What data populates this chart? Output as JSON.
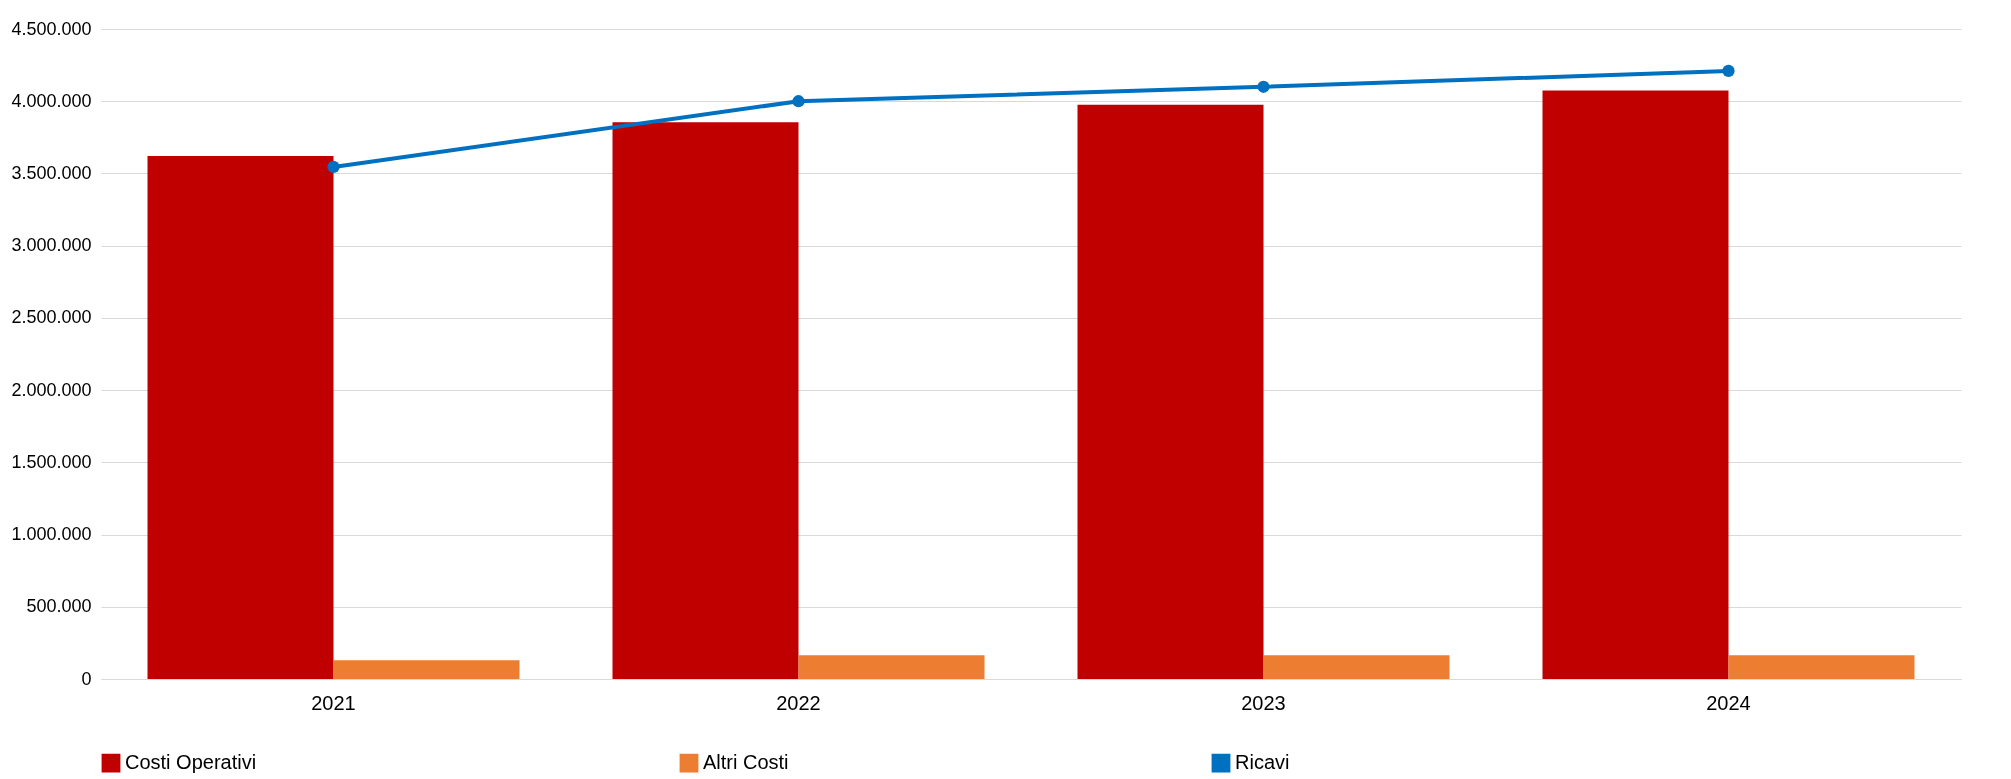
{
  "chart_data": {
    "type": "bar",
    "categories": [
      "2021",
      "2022",
      "2023",
      "2024"
    ],
    "series": [
      {
        "name": "Costi Operativi",
        "color": "#c00000",
        "values": [
          3620000,
          3855000,
          3975000,
          4075000
        ]
      },
      {
        "name": "Altri Costi",
        "color": "#ed7d31",
        "values": [
          130000,
          165000,
          165000,
          165000
        ]
      },
      {
        "name": "Ricavi",
        "color": "#0070c0",
        "type": "line",
        "marker": "circle",
        "values": [
          3545000,
          4000000,
          4100000,
          4210000
        ]
      }
    ],
    "ylim": [
      0,
      4500000
    ],
    "yticks": [
      {
        "value": 0,
        "label": "0"
      },
      {
        "value": 500000,
        "label": "500.000"
      },
      {
        "value": 1000000,
        "label": "1.000.000"
      },
      {
        "value": 1500000,
        "label": "1.500.000"
      },
      {
        "value": 2000000,
        "label": "2.000.000"
      },
      {
        "value": 2500000,
        "label": "2.500.000"
      },
      {
        "value": 3000000,
        "label": "3.000.000"
      },
      {
        "value": 3500000,
        "label": "3.500.000"
      },
      {
        "value": 4000000,
        "label": "4.000.000"
      },
      {
        "value": 4500000,
        "label": "4.500.000"
      }
    ],
    "grid": "y",
    "legend": "bottom"
  }
}
